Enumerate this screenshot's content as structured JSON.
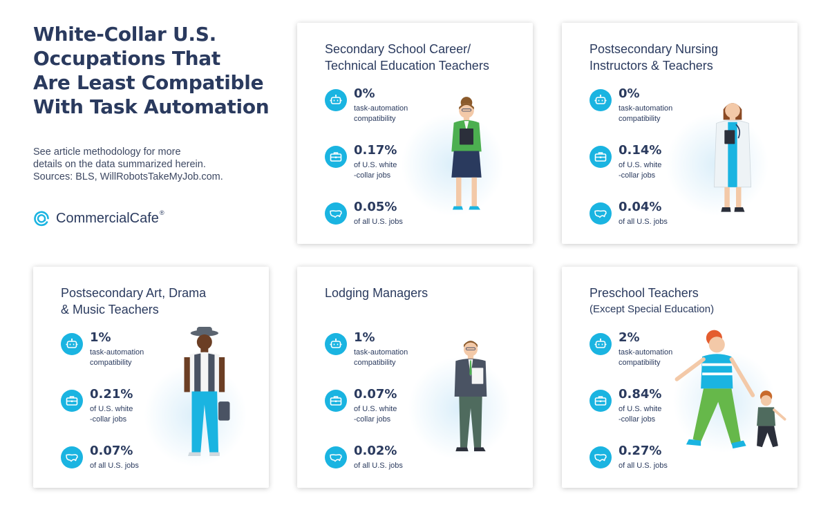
{
  "title_lines": [
    "White-Collar U.S.",
    "Occupations That",
    "Are Least Compatible",
    "With Task Automation"
  ],
  "note_lines": [
    "See article methodology for more",
    "details on the data summarized herein.",
    "Sources: BLS, WillRobotsTakeMyJob.com."
  ],
  "brand": {
    "name": "CommercialCafe",
    "reg": "®"
  },
  "labels": {
    "automation": [
      "task-automation",
      "compatibility"
    ],
    "white_collar": [
      "of U.S. white",
      "-collar jobs"
    ],
    "all_jobs": [
      "of all U.S. jobs"
    ]
  },
  "icons": {
    "automation": "robot-icon",
    "white_collar": "briefcase-icon",
    "all_jobs": "usa-map-icon"
  },
  "colors": {
    "accent": "#1ab4e1",
    "heading": "#2a3a5e"
  },
  "cards": [
    {
      "title_lines": [
        "Secondary School Career/",
        "Technical Education Teachers"
      ],
      "automation": "0%",
      "white_collar": "0.17%",
      "all_jobs": "0.05%"
    },
    {
      "title_lines": [
        "Postsecondary Nursing",
        "Instructors & Teachers"
      ],
      "automation": "0%",
      "white_collar": "0.14%",
      "all_jobs": "0.04%"
    },
    {
      "title_lines": [
        "Postsecondary Art, Drama",
        "& Music Teachers"
      ],
      "automation": "1%",
      "white_collar": "0.21%",
      "all_jobs": "0.07%"
    },
    {
      "title_lines": [
        "Lodging Managers"
      ],
      "automation": "1%",
      "white_collar": "0.07%",
      "all_jobs": "0.02%"
    },
    {
      "title_lines": [
        "Preschool Teachers",
        "(Except Special Education)"
      ],
      "automation": "2%",
      "white_collar": "0.84%",
      "all_jobs": "0.27%"
    }
  ]
}
